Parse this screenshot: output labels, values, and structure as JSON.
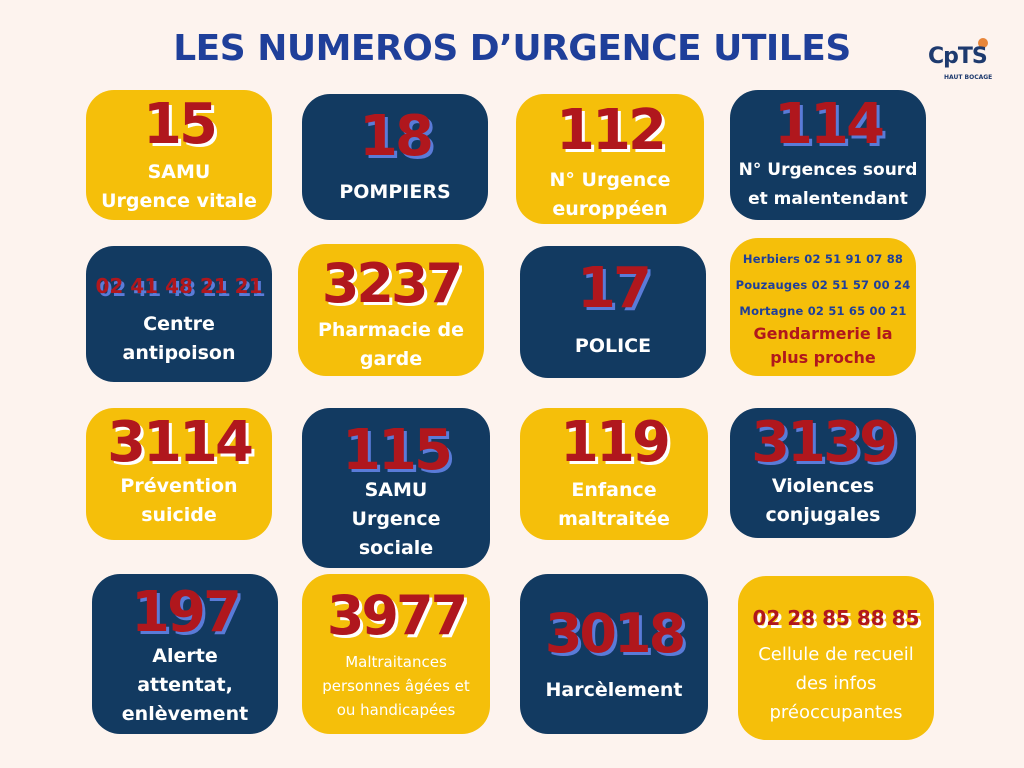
{
  "title": "LES NUMEROS D’URGENCE UTILES",
  "logo": {
    "text": "CpTS",
    "subtitle": "HAUT BOCAGE"
  },
  "cards": [
    {
      "number": "15",
      "label": "SAMU\nUrgence vitale"
    },
    {
      "number": "18",
      "label": "POMPIERS"
    },
    {
      "number": "112",
      "label": "N° Urgence\neuroppéen"
    },
    {
      "number": "114",
      "label": "N° Urgences sourd\net malentendant"
    },
    {
      "number": "02 41 48 21 21",
      "label": "Centre\nantipoison"
    },
    {
      "number": "3237",
      "label": "Pharmacie de\ngarde"
    },
    {
      "number": "17",
      "label": "POLICE"
    },
    {
      "lines": [
        "Herbiers 02 51 91 07 88",
        "Pouzauges 02 51 57 00 24",
        "Mortagne 02 51 65 00 21"
      ],
      "label": "Gendarmerie la\nplus proche"
    },
    {
      "number": "3114",
      "label": "Prévention\nsuicide"
    },
    {
      "number": "115",
      "label": "SAMU\nUrgence\nsociale"
    },
    {
      "number": "119",
      "label": "Enfance\nmaltraitée"
    },
    {
      "number": "3139",
      "label": "Violences\nconjugales"
    },
    {
      "number": "197",
      "label": "Alerte\nattentat,\nenlèvement"
    },
    {
      "number": "3977",
      "label": "Maltraitances\npersonnes âgées et\nou handicapées"
    },
    {
      "number": "3018",
      "label": "Harcèlement"
    },
    {
      "number": "02 28 85 88 85",
      "label": "Cellule de recueil\ndes infos\npréoccupantes"
    }
  ],
  "colors": {
    "navy": "#123a61",
    "gold": "#f5bf0a",
    "red": "#b0171d",
    "title": "#1f3f9a"
  }
}
